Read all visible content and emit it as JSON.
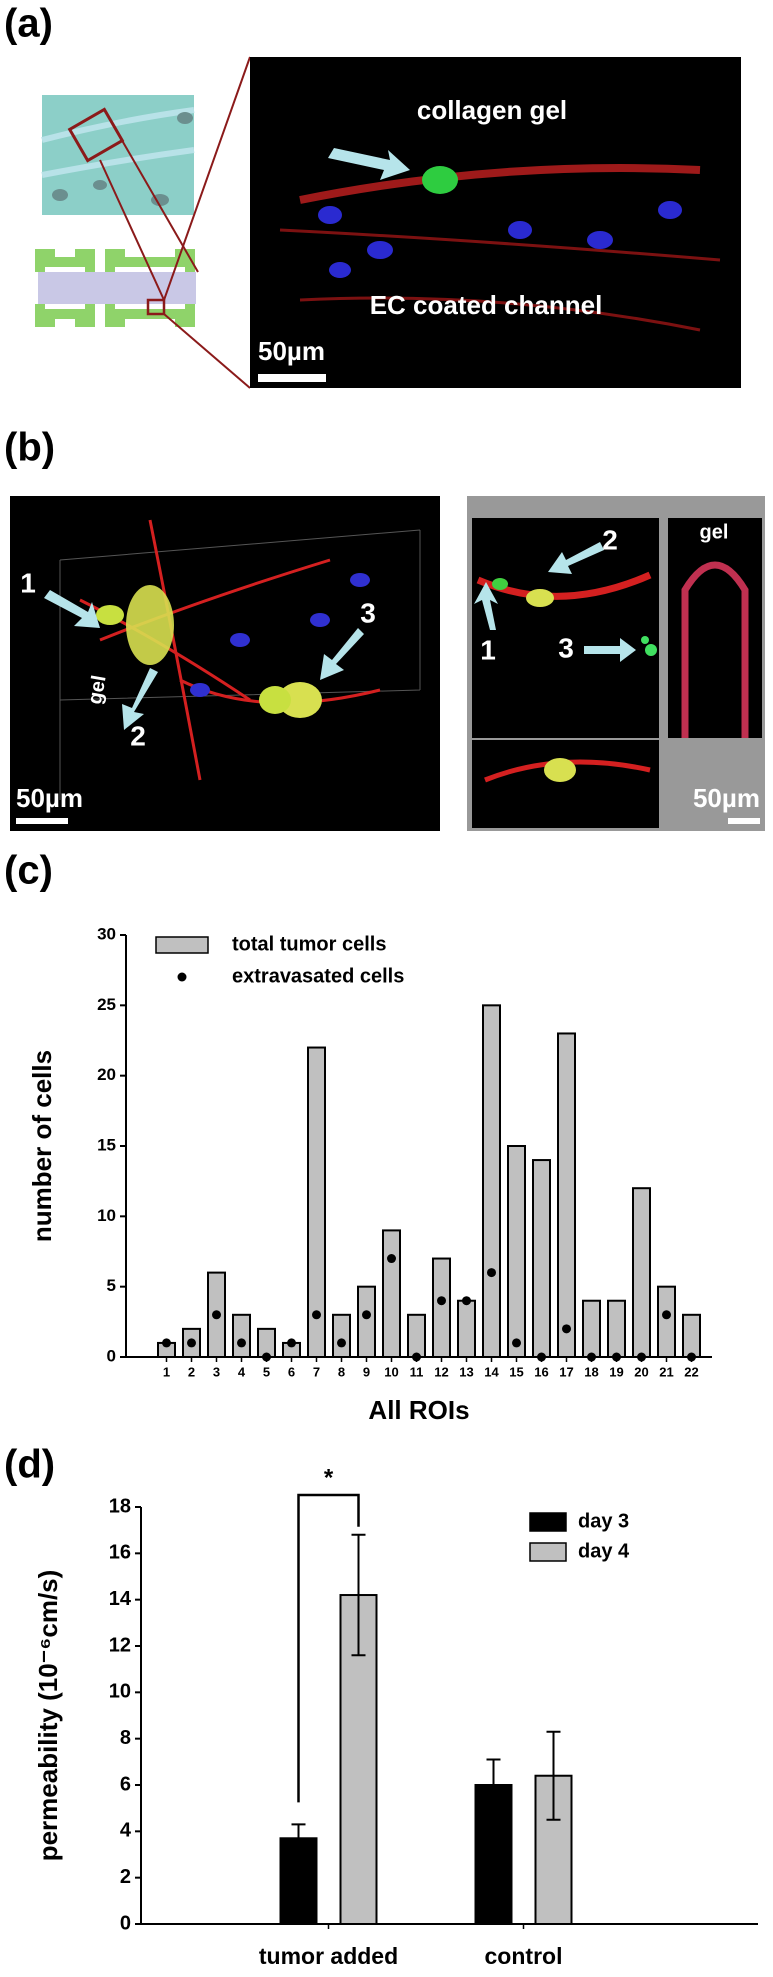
{
  "panels": {
    "a": {
      "label": "(a)",
      "annotations": [
        "collagen gel",
        "EC coated channel"
      ],
      "scale_bar": "50µm"
    },
    "b": {
      "label": "(b)",
      "left": {
        "annotations": [
          "1",
          "2",
          "3",
          "gel"
        ],
        "scale_bar": "50µm"
      },
      "right": {
        "annotations": [
          "2",
          "1",
          "3",
          "gel"
        ],
        "scale_bar": "50µm"
      }
    },
    "c": {
      "label": "(c)"
    },
    "d": {
      "label": "(d)"
    }
  },
  "chart_data": [
    {
      "type": "bar",
      "categories": [
        "1",
        "2",
        "3",
        "4",
        "5",
        "6",
        "7",
        "8",
        "9",
        "10",
        "11",
        "12",
        "13",
        "14",
        "15",
        "16",
        "17",
        "18",
        "19",
        "20",
        "21",
        "22"
      ],
      "xlabel": "All ROIs",
      "ylabel": "number of cells",
      "ylim": [
        0,
        30
      ],
      "yticks": [
        0,
        5,
        10,
        15,
        20,
        25,
        30
      ],
      "series": [
        {
          "name": "total tumor cells",
          "color": "#c0c0c0",
          "mark": "bar",
          "values": [
            1,
            2,
            6,
            3,
            2,
            1,
            22,
            3,
            5,
            9,
            3,
            7,
            4,
            25,
            15,
            14,
            23,
            4,
            4,
            12,
            5,
            3
          ]
        },
        {
          "name": "extravasated cells",
          "color": "#000000",
          "mark": "point",
          "values": [
            1,
            1,
            3,
            1,
            0,
            1,
            3,
            1,
            3,
            7,
            0,
            4,
            4,
            6,
            1,
            0,
            2,
            0,
            0,
            0,
            3,
            0
          ]
        }
      ]
    },
    {
      "type": "bar",
      "categories": [
        "tumor added",
        "control"
      ],
      "ylabel": "permeability (10⁻⁶cm/s)",
      "ylim": [
        0,
        18
      ],
      "yticks": [
        0,
        2,
        4,
        6,
        8,
        10,
        12,
        14,
        16,
        18
      ],
      "series": [
        {
          "name": "day 3",
          "color": "#000000",
          "values": [
            3.7,
            6.0
          ],
          "errors": [
            0.6,
            1.1
          ]
        },
        {
          "name": "day 4",
          "color": "#c0c0c0",
          "values": [
            14.2,
            6.4
          ],
          "errors": [
            2.6,
            1.9
          ]
        }
      ],
      "annotations": [
        "*"
      ]
    }
  ]
}
